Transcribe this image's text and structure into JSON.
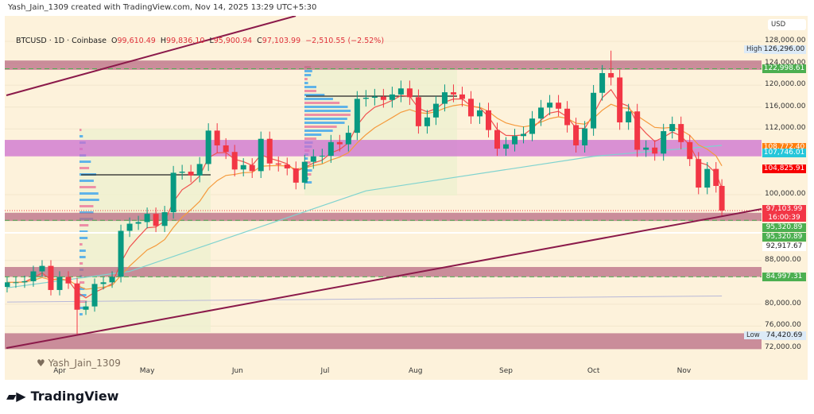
{
  "credit": "Yash_Jain_1309 created with TradingView.com, Nov 14, 2025 13:29 UTC+5:30",
  "legend": {
    "symbol": "BTCUSD · 1D · Coinbase",
    "o_label": "O",
    "o": "99,610.49",
    "h_label": "H",
    "h": "99,836.10",
    "l_label": "L",
    "l": "95,900.94",
    "c_label": "C",
    "c": "97,103.99",
    "change": "−2,510.55 (−2.52%)"
  },
  "axis": {
    "currency": "USD",
    "high_label": "High",
    "low_label": "Low"
  },
  "watermark": "Yash_Jain_1309",
  "brand": "TradingView",
  "colors": {
    "up": "#089981",
    "down": "#f23645",
    "ema_fast": "#f0524f",
    "ema_slow": "#f59a3c",
    "ma_long": "#7fd3cf",
    "zone_pink": "#b86b84",
    "zone_purple": "#cc6fd0",
    "trendline": "#8b1a4a"
  },
  "chart_data": {
    "type": "candlestick",
    "symbol": "BTCUSD",
    "interval": "1D",
    "ylim": [
      70000,
      130000
    ],
    "y_ticks": [
      128000,
      124000,
      120000,
      116000,
      112000,
      100000,
      88000,
      80000,
      76000,
      72000
    ],
    "y_tick_labels": [
      "128,000.00",
      "124,000.00",
      "120,000.00",
      "116,000.00",
      "112,000.00",
      "100,000.00",
      "88,000.00",
      "80,000.00",
      "76,000.00",
      "72,000.00"
    ],
    "x_ticks": [
      "Apr",
      "May",
      "Jun",
      "Jul",
      "Aug",
      "Sep",
      "Oct",
      "Nov"
    ],
    "x_tick_dates": [
      "2025-04-01",
      "2025-05-01",
      "2025-06-01",
      "2025-07-01",
      "2025-08-01",
      "2025-09-01",
      "2025-10-01",
      "2025-11-01"
    ],
    "closes": [
      [
        "2025-03-14",
        84000
      ],
      [
        "2025-03-17",
        84000
      ],
      [
        "2025-03-20",
        84200
      ],
      [
        "2025-03-23",
        86000
      ],
      [
        "2025-03-26",
        87000
      ],
      [
        "2025-03-29",
        82600
      ],
      [
        "2025-04-01",
        85000
      ],
      [
        "2025-04-04",
        83800
      ],
      [
        "2025-04-07",
        79000
      ],
      [
        "2025-04-10",
        79600
      ],
      [
        "2025-04-13",
        83700
      ],
      [
        "2025-04-16",
        84000
      ],
      [
        "2025-04-19",
        85000
      ],
      [
        "2025-04-22",
        93400
      ],
      [
        "2025-04-25",
        94700
      ],
      [
        "2025-04-28",
        95000
      ],
      [
        "2025-05-01",
        96500
      ],
      [
        "2025-05-04",
        94300
      ],
      [
        "2025-05-07",
        96800
      ],
      [
        "2025-05-10",
        104000
      ],
      [
        "2025-05-13",
        104200
      ],
      [
        "2025-05-16",
        103500
      ],
      [
        "2025-05-19",
        105600
      ],
      [
        "2025-05-22",
        111700
      ],
      [
        "2025-05-25",
        109000
      ],
      [
        "2025-05-28",
        107800
      ],
      [
        "2025-05-31",
        104600
      ],
      [
        "2025-06-03",
        105400
      ],
      [
        "2025-06-06",
        104300
      ],
      [
        "2025-06-09",
        110200
      ],
      [
        "2025-06-12",
        105700
      ],
      [
        "2025-06-15",
        105500
      ],
      [
        "2025-06-18",
        104800
      ],
      [
        "2025-06-21",
        102200
      ],
      [
        "2025-06-24",
        106000
      ],
      [
        "2025-06-27",
        107000
      ],
      [
        "2025-06-30",
        107100
      ],
      [
        "2025-07-03",
        109600
      ],
      [
        "2025-07-06",
        109200
      ],
      [
        "2025-07-09",
        111300
      ],
      [
        "2025-07-12",
        117500
      ],
      [
        "2025-07-15",
        117700
      ],
      [
        "2025-07-18",
        117900
      ],
      [
        "2025-07-21",
        117300
      ],
      [
        "2025-07-24",
        118300
      ],
      [
        "2025-07-27",
        119400
      ],
      [
        "2025-07-30",
        117800
      ],
      [
        "2025-08-02",
        112500
      ],
      [
        "2025-08-05",
        114100
      ],
      [
        "2025-08-08",
        116600
      ],
      [
        "2025-08-11",
        118700
      ],
      [
        "2025-08-14",
        118300
      ],
      [
        "2025-08-17",
        117500
      ],
      [
        "2025-08-20",
        114300
      ],
      [
        "2025-08-23",
        115400
      ],
      [
        "2025-08-26",
        111800
      ],
      [
        "2025-08-29",
        108400
      ],
      [
        "2025-09-01",
        109200
      ],
      [
        "2025-09-04",
        110700
      ],
      [
        "2025-09-07",
        111100
      ],
      [
        "2025-09-10",
        113900
      ],
      [
        "2025-09-13",
        115900
      ],
      [
        "2025-09-16",
        116800
      ],
      [
        "2025-09-19",
        115700
      ],
      [
        "2025-09-22",
        112700
      ],
      [
        "2025-09-25",
        109000
      ],
      [
        "2025-09-28",
        112100
      ],
      [
        "2025-10-01",
        118600
      ],
      [
        "2025-10-04",
        122200
      ],
      [
        "2025-10-07",
        121400
      ],
      [
        "2025-10-10",
        113200
      ],
      [
        "2025-10-13",
        115200
      ],
      [
        "2025-10-16",
        108200
      ],
      [
        "2025-10-19",
        108600
      ],
      [
        "2025-10-22",
        107500
      ],
      [
        "2025-10-25",
        111600
      ],
      [
        "2025-10-28",
        112900
      ],
      [
        "2025-10-31",
        109600
      ],
      [
        "2025-11-03",
        106500
      ],
      [
        "2025-11-06",
        101300
      ],
      [
        "2025-11-09",
        104700
      ],
      [
        "2025-11-12",
        101600
      ],
      [
        "2025-11-14",
        97104
      ]
    ],
    "period_high": 126296.0,
    "period_low": 74420.69,
    "long_ma": [
      [
        "2025-03-14",
        83000
      ],
      [
        "2025-04-25",
        86000
      ],
      [
        "2025-07-15",
        100700
      ],
      [
        "2025-10-01",
        107000
      ],
      [
        "2025-11-14",
        109000
      ]
    ],
    "baseline": [
      [
        "2025-03-14",
        80400
      ],
      [
        "2025-11-14",
        81500
      ]
    ],
    "zones": [
      {
        "from": 122800,
        "to": 124500,
        "color": "pink"
      },
      {
        "from": 107000,
        "to": 110000,
        "color": "purple"
      },
      {
        "from": 95200,
        "to": 96700,
        "color": "pink"
      },
      {
        "from": 85000,
        "to": 86800,
        "color": "pink"
      },
      {
        "from": 71800,
        "to": 74700,
        "color": "pink"
      }
    ],
    "price_labels": [
      {
        "text": "126,296.00",
        "kind": "high"
      },
      {
        "text": "122,998.61",
        "color": "#4caf50",
        "value": 122998.61
      },
      {
        "text": "108,772.40",
        "color": "#ff7f0e",
        "value": 108772.4
      },
      {
        "text": "107,746.01",
        "color": "#26c6da",
        "value": 107746.01
      },
      {
        "text": "104,825.91",
        "color": "#f70000",
        "value": 104825.91
      },
      {
        "text": "97,103.99",
        "sub": "16:00:39",
        "color": "#f23645",
        "value": 97103.99
      },
      {
        "text": "95,320.89",
        "color": "#4caf50",
        "value": 95320.89
      },
      {
        "text": "95,320.89",
        "color": "#4caf50",
        "value": 95320.89
      },
      {
        "text": "92,917.67",
        "color": "#ffffff",
        "value": 92917.67
      },
      {
        "text": "84,997.31",
        "color": "#4caf50",
        "value": 84997.31
      },
      {
        "text": "74,420.69",
        "kind": "low"
      }
    ]
  }
}
